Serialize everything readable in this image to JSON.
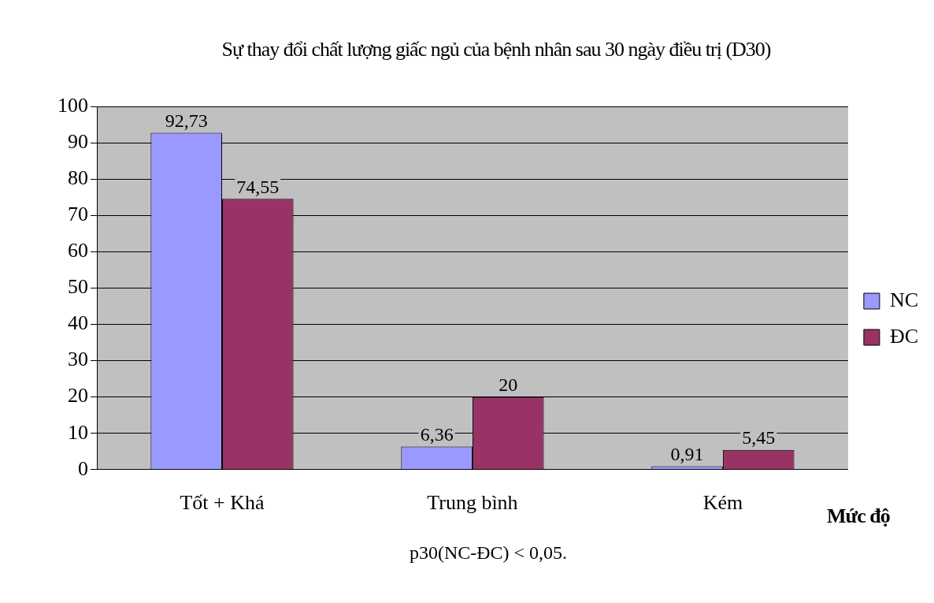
{
  "chart_data": {
    "type": "bar",
    "title": "Sự thay đổi chất lượng giấc ngủ của bệnh nhân sau 30 ngày điều trị (D30)",
    "xlabel": "Mức độ",
    "categories": [
      "Tốt + Khá",
      "Trung bình",
      "Kém"
    ],
    "series": [
      {
        "name": "NC",
        "color": "#9999ff",
        "values": [
          92.73,
          6.36,
          0.91
        ],
        "value_labels": [
          "92,73",
          "6,36",
          "0,91"
        ]
      },
      {
        "name": "ĐC",
        "color": "#993366",
        "values": [
          74.55,
          20,
          5.45
        ],
        "value_labels": [
          "74,55",
          "20",
          "5,45"
        ]
      }
    ],
    "ylim": [
      0,
      100
    ],
    "yticks": [
      0,
      10,
      20,
      30,
      40,
      50,
      60,
      70,
      80,
      90,
      100
    ],
    "grid": "y",
    "legend": "right",
    "annotations": [
      "p30(NC-ĐC)  < 0,05."
    ]
  }
}
